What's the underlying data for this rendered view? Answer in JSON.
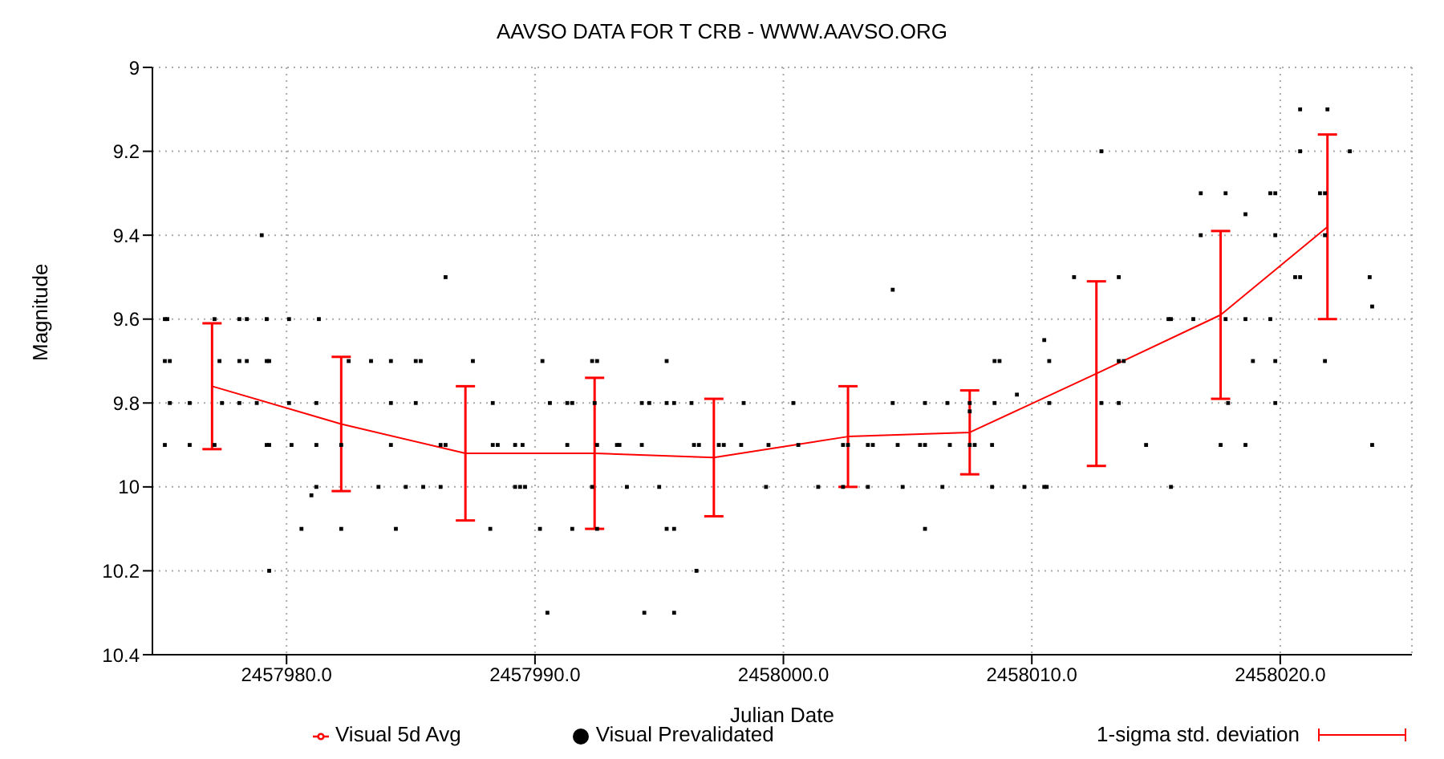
{
  "chart_data": {
    "type": "scatter",
    "title": "AAVSO DATA FOR T CRB - WWW.AAVSO.ORG",
    "xlabel": "Julian Date",
    "ylabel": "Magnitude",
    "xlim": [
      2457974.6,
      2458025.3
    ],
    "xticks": [
      {
        "value": 2457980,
        "label": "2457980.0"
      },
      {
        "value": 2457990,
        "label": "2457990.0"
      },
      {
        "value": 2458000,
        "label": "2458000.0"
      },
      {
        "value": 2458010,
        "label": "2458010.0"
      },
      {
        "value": 2458020,
        "label": "2458020.0"
      }
    ],
    "ylim": [
      10.4,
      9
    ],
    "yticks": [
      9,
      9.2,
      9.4,
      9.6,
      9.8,
      10,
      10.2,
      10.4
    ],
    "grid": true,
    "legend": "bottom",
    "annotations": [
      "1-sigma std. deviation"
    ],
    "series": [
      {
        "name": "Visual Prevalidated",
        "type": "scatter",
        "marker": "square",
        "color": "#000000",
        "x": [
          2457979.0,
          2457986.4,
          2457975.1,
          2457975.2,
          2457977.1,
          2457978.1,
          2457978.4,
          2457979.2,
          2457980.1,
          2457981.3,
          2457975.1,
          2457975.3,
          2457977.3,
          2457978.1,
          2457978.4,
          2457979.2,
          2457979.3,
          2457982.5,
          2457983.4,
          2457984.2,
          2457985.2,
          2457985.4,
          2457975.3,
          2457976.1,
          2457977.4,
          2457978.1,
          2457978.8,
          2457980.1,
          2457981.2,
          2457984.2,
          2457985.2,
          2457975.1,
          2457976.1,
          2457977.1,
          2457979.2,
          2457979.3,
          2457980.2,
          2457981.2,
          2457982.2,
          2457984.2,
          2457986.2,
          2457986.4,
          2457981.2,
          2457983.7,
          2457984.8,
          2457985.5,
          2457986.2,
          2457981.0,
          2457980.6,
          2457982.2,
          2457984.4,
          2457979.3,
          2457987.5,
          2457990.3,
          2457992.3,
          2457992.5,
          2457995.3,
          2457988.3,
          2457990.6,
          2457991.3,
          2457991.5,
          2457992.4,
          2457994.3,
          2457994.6,
          2457995.3,
          2457995.6,
          2457996.3,
          2457998.4,
          2457988.3,
          2457988.5,
          2457989.2,
          2457989.5,
          2457991.3,
          2457992.5,
          2457993.3,
          2457993.4,
          2457994.3,
          2457996.4,
          2457996.6,
          2457997.4,
          2457997.6,
          2457998.3,
          2457999.4,
          2457989.2,
          2457989.4,
          2457989.6,
          2457992.3,
          2457993.7,
          2457995.0,
          2457999.3,
          2457988.2,
          2457990.2,
          2457991.5,
          2457992.5,
          2457995.3,
          2457995.6,
          2457996.5,
          2457990.5,
          2457994.4,
          2457995.6,
          2458004.4,
          2458011.7,
          2458010.5,
          2458008.5,
          2458008.7,
          2458010.7,
          2458009.4,
          2458000.4,
          2458004.4,
          2458005.7,
          2458006.6,
          2458007.5,
          2458008.5,
          2458010.7,
          2458007.5,
          2458000.6,
          2458002.4,
          2458002.6,
          2458003.4,
          2458003.6,
          2458004.6,
          2458005.5,
          2458005.7,
          2458006.7,
          2458007.5,
          2458007.7,
          2458008.4,
          2458001.4,
          2458002.4,
          2458003.4,
          2458004.8,
          2458006.4,
          2458008.4,
          2458009.7,
          2458010.5,
          2458010.6,
          2458005.7,
          2458020.8,
          2458021.9,
          2458012.8,
          2458020.8,
          2458022.8,
          2458016.8,
          2458017.8,
          2458019.6,
          2458019.8,
          2458021.6,
          2458021.8,
          2458018.6,
          2458016.8,
          2458019.8,
          2458021.8,
          2458013.5,
          2458020.6,
          2458020.8,
          2458023.6,
          2458023.7,
          2458015.5,
          2458015.6,
          2458016.5,
          2458017.8,
          2458018.6,
          2458019.6,
          2458013.5,
          2458013.7,
          2458018.9,
          2458019.8,
          2458021.8,
          2458012.8,
          2458013.5,
          2458017.9,
          2458019.8,
          2458014.6,
          2458017.6,
          2458018.6,
          2458023.7,
          2458015.6
        ],
        "values": [
          9.4,
          9.5,
          9.6,
          9.6,
          9.6,
          9.6,
          9.6,
          9.6,
          9.6,
          9.6,
          9.7,
          9.7,
          9.7,
          9.7,
          9.7,
          9.7,
          9.7,
          9.7,
          9.7,
          9.7,
          9.7,
          9.7,
          9.8,
          9.8,
          9.8,
          9.8,
          9.8,
          9.8,
          9.8,
          9.8,
          9.8,
          9.9,
          9.9,
          9.9,
          9.9,
          9.9,
          9.9,
          9.9,
          9.9,
          9.9,
          9.9,
          9.9,
          10.0,
          10.0,
          10.0,
          10.0,
          10.0,
          10.02,
          10.1,
          10.1,
          10.1,
          10.2,
          9.7,
          9.7,
          9.7,
          9.7,
          9.7,
          9.8,
          9.8,
          9.8,
          9.8,
          9.8,
          9.8,
          9.8,
          9.8,
          9.8,
          9.8,
          9.8,
          9.9,
          9.9,
          9.9,
          9.9,
          9.9,
          9.9,
          9.9,
          9.9,
          9.9,
          9.9,
          9.9,
          9.9,
          9.9,
          9.9,
          9.9,
          10.0,
          10.0,
          10.0,
          10.0,
          10.0,
          10.0,
          10.0,
          10.1,
          10.1,
          10.1,
          10.1,
          10.1,
          10.1,
          10.2,
          10.3,
          10.3,
          10.3,
          9.53,
          9.5,
          9.65,
          9.7,
          9.7,
          9.7,
          9.78,
          9.8,
          9.8,
          9.8,
          9.8,
          9.8,
          9.8,
          9.8,
          9.82,
          9.9,
          9.9,
          9.9,
          9.9,
          9.9,
          9.9,
          9.9,
          9.9,
          9.9,
          9.9,
          9.9,
          9.9,
          10.0,
          10.0,
          10.0,
          10.0,
          10.0,
          10.0,
          10.0,
          10.0,
          10.0,
          10.1,
          9.1,
          9.1,
          9.2,
          9.2,
          9.2,
          9.3,
          9.3,
          9.3,
          9.3,
          9.3,
          9.3,
          9.35,
          9.4,
          9.4,
          9.4,
          9.5,
          9.5,
          9.5,
          9.5,
          9.57,
          9.6,
          9.6,
          9.6,
          9.6,
          9.6,
          9.6,
          9.7,
          9.7,
          9.7,
          9.7,
          9.7,
          9.8,
          9.8,
          9.8,
          9.8,
          9.9,
          9.9,
          9.9,
          9.9,
          10.0
        ]
      },
      {
        "name": "Visual 5d Avg",
        "type": "line",
        "color": "#ff0000",
        "x": [
          2457977.0,
          2457982.2,
          2457987.2,
          2457992.4,
          2457997.2,
          2458002.6,
          2458007.5,
          2458012.6,
          2458017.6,
          2458021.9
        ],
        "values": [
          9.76,
          9.85,
          9.92,
          9.92,
          9.93,
          9.88,
          9.87,
          9.73,
          9.59,
          9.38
        ],
        "errors": [
          0.15,
          0.16,
          0.16,
          0.18,
          0.14,
          0.12,
          0.1,
          0.22,
          0.2,
          0.22
        ]
      }
    ]
  }
}
